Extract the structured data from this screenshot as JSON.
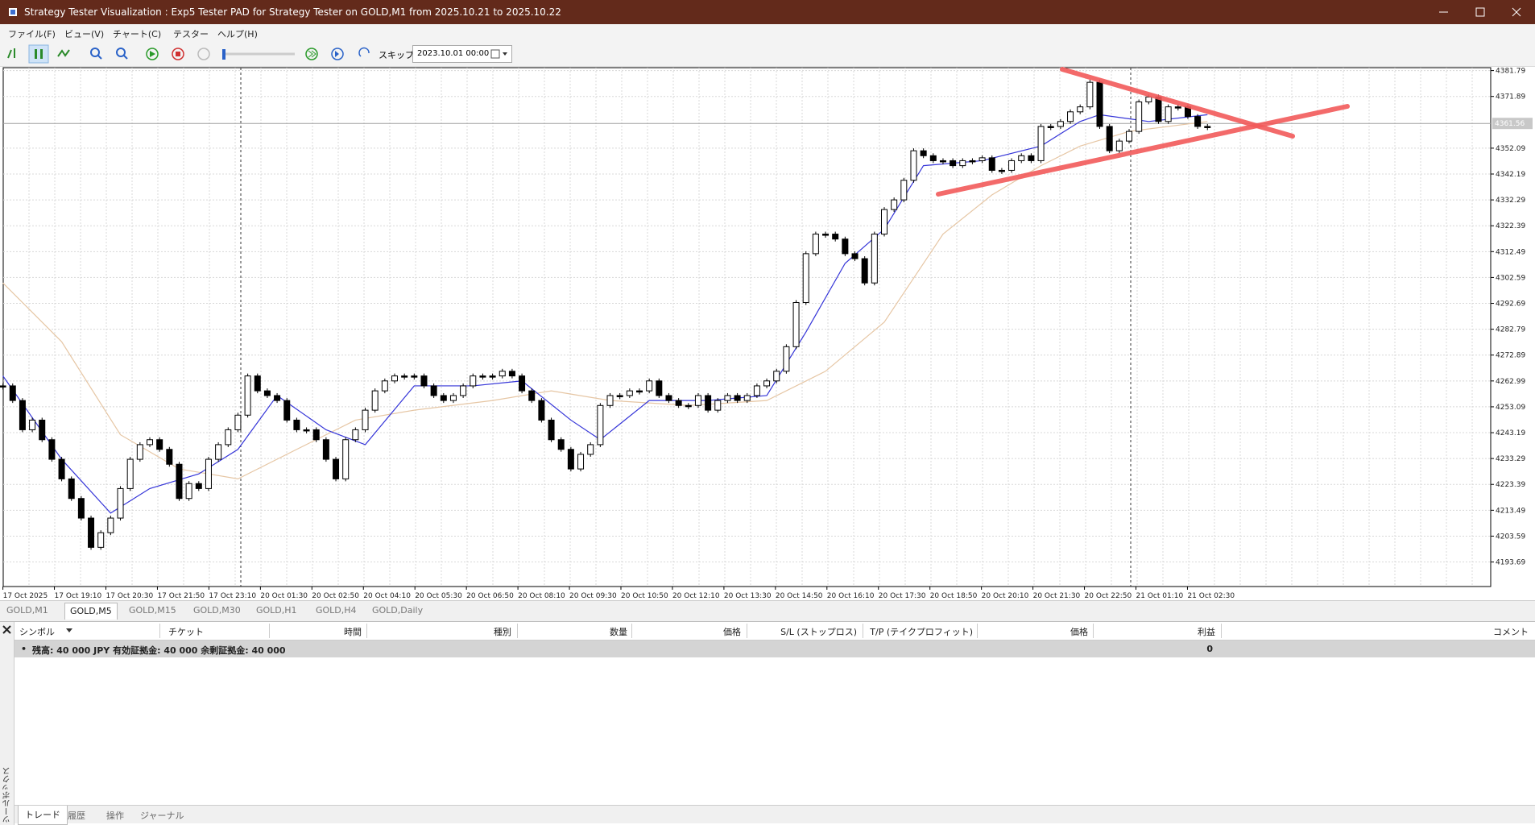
{
  "window": {
    "title": "Strategy Tester Visualization : Exp5 Tester PAD for Strategy Tester on GOLD,M1 from 2025.10.21 to 2025.10.22"
  },
  "menu": [
    "ファイル(F)",
    "ビュー(V)",
    "チャート(C)",
    "テスター",
    "ヘルプ(H)"
  ],
  "toolbar": {
    "skip_label": "スキップ",
    "date": "2023.10.01 00:00"
  },
  "chart_tabs": [
    "GOLD,M1",
    "GOLD,M5",
    "GOLD,M15",
    "GOLD,M30",
    "GOLD,H1",
    "GOLD,H4",
    "GOLD,Daily"
  ],
  "chart_data": {
    "type": "candlestick",
    "up_color": "#ffffff",
    "down_color": "#000000",
    "close": [
      4261.1,
      4255.5,
      4244.3,
      4248.0,
      4240.5,
      4233.0,
      4225.5,
      4218.0,
      4210.5,
      4199.3,
      4204.9,
      4210.5,
      4221.8,
      4233.0,
      4238.6,
      4240.5,
      4236.8,
      4231.1,
      4218.0,
      4223.7,
      4221.8,
      4233.0,
      4238.6,
      4244.3,
      4249.9,
      4264.9,
      4259.2,
      4257.4,
      4255.5,
      4248.0,
      4244.3,
      4244.3,
      4240.5,
      4233.0,
      4225.5,
      4240.5,
      4244.3,
      4251.8,
      4259.2,
      4263.0,
      4264.9,
      4264.9,
      4264.9,
      4261.1,
      4257.4,
      4255.5,
      4257.4,
      4261.1,
      4264.9,
      4264.9,
      4264.9,
      4266.7,
      4264.9,
      4259.2,
      4255.5,
      4248.0,
      4240.5,
      4236.8,
      4229.3,
      4234.9,
      4238.6,
      4253.6,
      4257.4,
      4257.4,
      4259.2,
      4259.2,
      4263.0,
      4257.4,
      4255.5,
      4253.6,
      4253.6,
      4257.4,
      4251.8,
      4255.5,
      4257.4,
      4255.5,
      4257.4,
      4261.1,
      4263.0,
      4266.7,
      4276.1,
      4293.0,
      4311.7,
      4319.2,
      4319.2,
      4317.3,
      4311.7,
      4309.8,
      4300.5,
      4319.2,
      4328.6,
      4332.3,
      4339.8,
      4351.1,
      4349.2,
      4347.3,
      4347.3,
      4345.4,
      4347.3,
      4347.3,
      4348.4,
      4343.6,
      4343.6,
      4347.3,
      4349.2,
      4347.3,
      4360.4,
      4360.4,
      4362.3,
      4366.0,
      4367.9,
      4377.3,
      4360.4,
      4351.1,
      4354.8,
      4358.5,
      4369.8,
      4371.7,
      4362.3,
      4367.9,
      4367.9,
      4364.2,
      4360.4,
      4360.4
    ],
    "ma_lines": [
      {
        "color": "#3535d8",
        "x": [
          0,
          6,
          11,
          15,
          20,
          24,
          28,
          33,
          37,
          42,
          48,
          53,
          58,
          61,
          66,
          72,
          78,
          82,
          86,
          90,
          94,
          100,
          106,
          110,
          112,
          117,
          123
        ],
        "values": [
          4264.9,
          4233.0,
          4212.4,
          4221.8,
          4227.4,
          4236.8,
          4257.4,
          4244.3,
          4238.6,
          4261.1,
          4261.1,
          4263.0,
          4248.0,
          4240.5,
          4255.5,
          4255.5,
          4257.4,
          4281.7,
          4308.0,
          4321.1,
          4345.4,
          4347.3,
          4352.9,
          4362.3,
          4364.9,
          4362.3,
          4364.9
        ]
      },
      {
        "color": "#e6c6a4",
        "x": [
          0,
          6,
          12,
          18,
          24,
          30,
          36,
          42,
          50,
          56,
          62,
          70,
          78,
          84,
          90,
          96,
          101,
          106,
          110,
          115,
          123
        ],
        "values": [
          4300.5,
          4278.0,
          4242.4,
          4229.3,
          4225.5,
          4236.8,
          4248.0,
          4251.8,
          4255.5,
          4259.2,
          4255.5,
          4253.6,
          4255.5,
          4266.7,
          4285.5,
          4319.2,
          4334.2,
          4345.4,
          4352.9,
          4358.5,
          4362.3
        ]
      }
    ],
    "current_price": 4361.56,
    "ylim": [
      4184.3,
      4382.9
    ],
    "yticks": [
      4381.79,
      4371.89,
      4352.09,
      4342.19,
      4332.29,
      4322.39,
      4312.49,
      4302.59,
      4292.69,
      4282.79,
      4272.89,
      4262.99,
      4253.09,
      4243.19,
      4233.29,
      4223.39,
      4213.49,
      4203.59,
      4193.69
    ],
    "grid": true,
    "x_labels": [
      "17 Oct 2025",
      "17 Oct 19:10",
      "17 Oct 20:30",
      "17 Oct 21:50",
      "17 Oct 23:10",
      "20 Oct 01:30",
      "20 Oct 02:50",
      "20 Oct 04:10",
      "20 Oct 05:30",
      "20 Oct 06:50",
      "20 Oct 08:10",
      "20 Oct 09:30",
      "20 Oct 10:50",
      "20 Oct 12:10",
      "20 Oct 13:30",
      "20 Oct 14:50",
      "20 Oct 16:10",
      "20 Oct 17:30",
      "20 Oct 18:50",
      "20 Oct 20:10",
      "20 Oct 21:30",
      "20 Oct 22:50",
      "21 Oct 01:10",
      "21 Oct 02:30"
    ]
  },
  "terminal": {
    "columns": [
      "シンボル",
      "チケット",
      "時間",
      "種別",
      "数量",
      "価格",
      "S/L (ストップロス)",
      "T/P (テイクプロフィット)",
      "価格",
      "利益",
      "コメント"
    ],
    "balance_text": "残高: 40 000 JPY  有効証拠金: 40 000  余剰証拠金: 40 000",
    "profit": 0,
    "tabs": [
      "トレード",
      "履歴",
      "操作",
      "ジャーナル"
    ],
    "side_label": "ツールボックス"
  }
}
